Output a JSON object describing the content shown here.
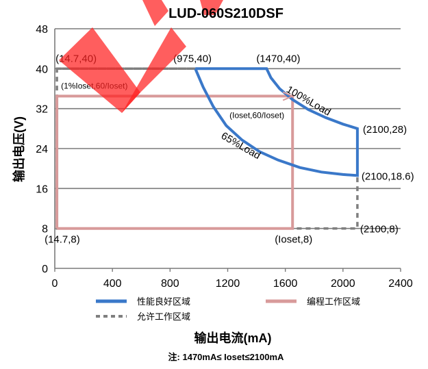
{
  "chart_data": {
    "type": "line",
    "title": "LUD-060S210DSF",
    "xlabel": "输出电流(mA)",
    "ylabel": "输出电压(V)",
    "xlim": [
      0,
      2400
    ],
    "ylim": [
      0,
      48
    ],
    "x_ticks": [
      "0",
      "400",
      "800",
      "1200",
      "1600",
      "2000",
      "2400"
    ],
    "y_ticks": [
      "0",
      "8",
      "16",
      "24",
      "32",
      "40",
      "48"
    ],
    "grid": "horizontal",
    "legend_position": "bottom",
    "series": [
      {
        "name": "性能良好区域",
        "color": "#3a78c9",
        "style": "solid",
        "points": [
          [
            975,
            40
          ],
          [
            1470,
            40
          ],
          [
            1500,
            38.2
          ],
          [
            1560,
            36
          ],
          [
            1650,
            33.8
          ],
          [
            1760,
            31.8
          ],
          [
            1880,
            30.2
          ],
          [
            2000,
            28.9
          ],
          [
            2100,
            28
          ],
          [
            2100,
            18.6
          ],
          [
            2000,
            18.8
          ],
          [
            1850,
            19.3
          ],
          [
            1700,
            20.2
          ],
          [
            1550,
            21.7
          ],
          [
            1420,
            23.4
          ],
          [
            1300,
            25.7
          ],
          [
            1190,
            28.6
          ],
          [
            1100,
            32.4
          ],
          [
            1030,
            36.3
          ],
          [
            975,
            40
          ]
        ]
      },
      {
        "name": "编程工作区域",
        "color": "#d89a9a",
        "style": "solid",
        "points": [
          [
            14.7,
            8
          ],
          [
            14.7,
            34.5
          ],
          [
            1650,
            34.5
          ],
          [
            1650,
            8
          ],
          [
            14.7,
            8
          ]
        ]
      },
      {
        "name": "允许工作区域",
        "color": "#7f7f7f",
        "style": "dashed",
        "points": [
          [
            14.7,
            40
          ],
          [
            975,
            40
          ],
          [
            14.7,
            40
          ],
          [
            14.7,
            8
          ],
          [
            2100,
            8
          ],
          [
            2100,
            18.6
          ]
        ]
      }
    ],
    "annotations": [
      {
        "text": "(14.7,40)",
        "x": 14.7,
        "y": 40
      },
      {
        "text": "(975,40)",
        "x": 975,
        "y": 40
      },
      {
        "text": "(1470,40)",
        "x": 1470,
        "y": 40
      },
      {
        "text": "(1%Ioset,60/Ioset)",
        "x": 14.7,
        "y": 34.5
      },
      {
        "text": "100%Load",
        "x": 1750,
        "y": 33
      },
      {
        "text": "(Ioset,60/Ioset)",
        "x": 1650,
        "y": 34.5
      },
      {
        "text": "65%Load",
        "x": 1280,
        "y": 24
      },
      {
        "text": "(2100,28)",
        "x": 2100,
        "y": 28
      },
      {
        "text": "(2100,18.6)",
        "x": 2100,
        "y": 18.6
      },
      {
        "text": "(14.7,8)",
        "x": 14.7,
        "y": 8
      },
      {
        "text": "(Ioset,8)",
        "x": 1650,
        "y": 8
      },
      {
        "text": "(2100,8)",
        "x": 2100,
        "y": 8
      }
    ],
    "note": "注: 1470mA≤ Ioset≤2100mA"
  },
  "watermark": {
    "color": "#ff2020"
  }
}
